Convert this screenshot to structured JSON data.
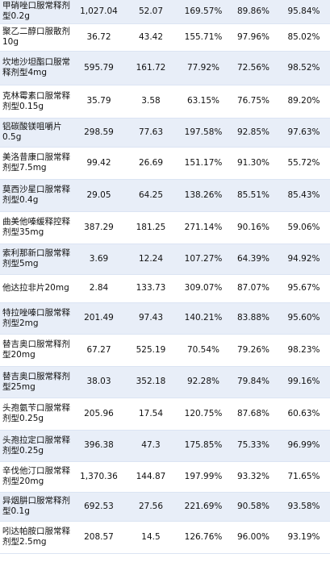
{
  "table": {
    "rows": [
      {
        "h": 29,
        "cells": [
          "甲硝唑口服常释剂型0.2g",
          "1,027.04",
          "52.07",
          "169.57%",
          "89.86%",
          "95.84%"
        ]
      },
      {
        "h": 34,
        "cells": [
          "聚乙二醇口服散剂10g",
          "36.72",
          "43.42",
          "155.71%",
          "97.96%",
          "85.02%"
        ]
      },
      {
        "h": 42,
        "cells": [
          "坎地沙坦酯口服常释剂型4mg",
          "595.79",
          "161.72",
          "77.92%",
          "72.56%",
          "98.52%"
        ]
      },
      {
        "h": 41,
        "cells": [
          "克林霉素口服常释剂型0.15g",
          "35.79",
          "3.58",
          "63.15%",
          "76.75%",
          "89.20%"
        ]
      },
      {
        "h": 36,
        "cells": [
          "铝碳酸镁咀嚼片0.5g",
          "298.59",
          "77.63",
          "197.58%",
          "92.85%",
          "97.63%"
        ]
      },
      {
        "h": 40,
        "cells": [
          "美洛昔康口服常释剂型7.5mg",
          "99.42",
          "26.69",
          "151.17%",
          "91.30%",
          "55.72%"
        ]
      },
      {
        "h": 40,
        "cells": [
          "莫西沙星口服常释剂型0.4g",
          "29.05",
          "64.25",
          "138.26%",
          "85.51%",
          "85.43%"
        ]
      },
      {
        "h": 40,
        "cells": [
          "曲美他嗪缓释控释剂型35mg",
          "387.29",
          "181.25",
          "271.14%",
          "90.16%",
          "59.06%"
        ]
      },
      {
        "h": 38,
        "cells": [
          "索利那新口服常释剂型5mg",
          "3.69",
          "12.24",
          "107.27%",
          "64.39%",
          "94.92%"
        ]
      },
      {
        "h": 35,
        "cells": [
          "他达拉非片20mg",
          "2.84",
          "133.73",
          "309.07%",
          "87.07%",
          "95.67%"
        ]
      },
      {
        "h": 39,
        "cells": [
          "特拉唑嗪口服常释剂型2mg",
          "201.49",
          "97.43",
          "140.21%",
          "83.88%",
          "95.60%"
        ]
      },
      {
        "h": 40,
        "cells": [
          "替吉奥口服常释剂型20mg",
          "67.27",
          "525.19",
          "70.54%",
          "79.26%",
          "98.23%"
        ]
      },
      {
        "h": 39,
        "cells": [
          "替吉奥口服常释剂型25mg",
          "38.03",
          "352.18",
          "92.28%",
          "79.84%",
          "99.16%"
        ]
      },
      {
        "h": 40,
        "cells": [
          "头孢氨苄口服常释剂型0.25g",
          "205.96",
          "17.54",
          "120.75%",
          "87.68%",
          "60.63%"
        ]
      },
      {
        "h": 39,
        "cells": [
          "头孢拉定口服常释剂型0.25g",
          "396.38",
          "47.3",
          "175.85%",
          "75.33%",
          "96.99%"
        ]
      },
      {
        "h": 38,
        "cells": [
          "辛伐他汀口服常释剂型20mg",
          "1,370.36",
          "144.87",
          "197.99%",
          "93.32%",
          "71.65%"
        ]
      },
      {
        "h": 36,
        "cells": [
          "异烟肼口服常释剂型0.1g",
          "692.53",
          "27.56",
          "221.69%",
          "90.58%",
          "93.58%"
        ]
      },
      {
        "h": 40,
        "cells": [
          "吲达帕胺口服常释剂型2.5mg",
          "208.57",
          "14.5",
          "126.76%",
          "96.00%",
          "93.19%"
        ]
      }
    ]
  }
}
